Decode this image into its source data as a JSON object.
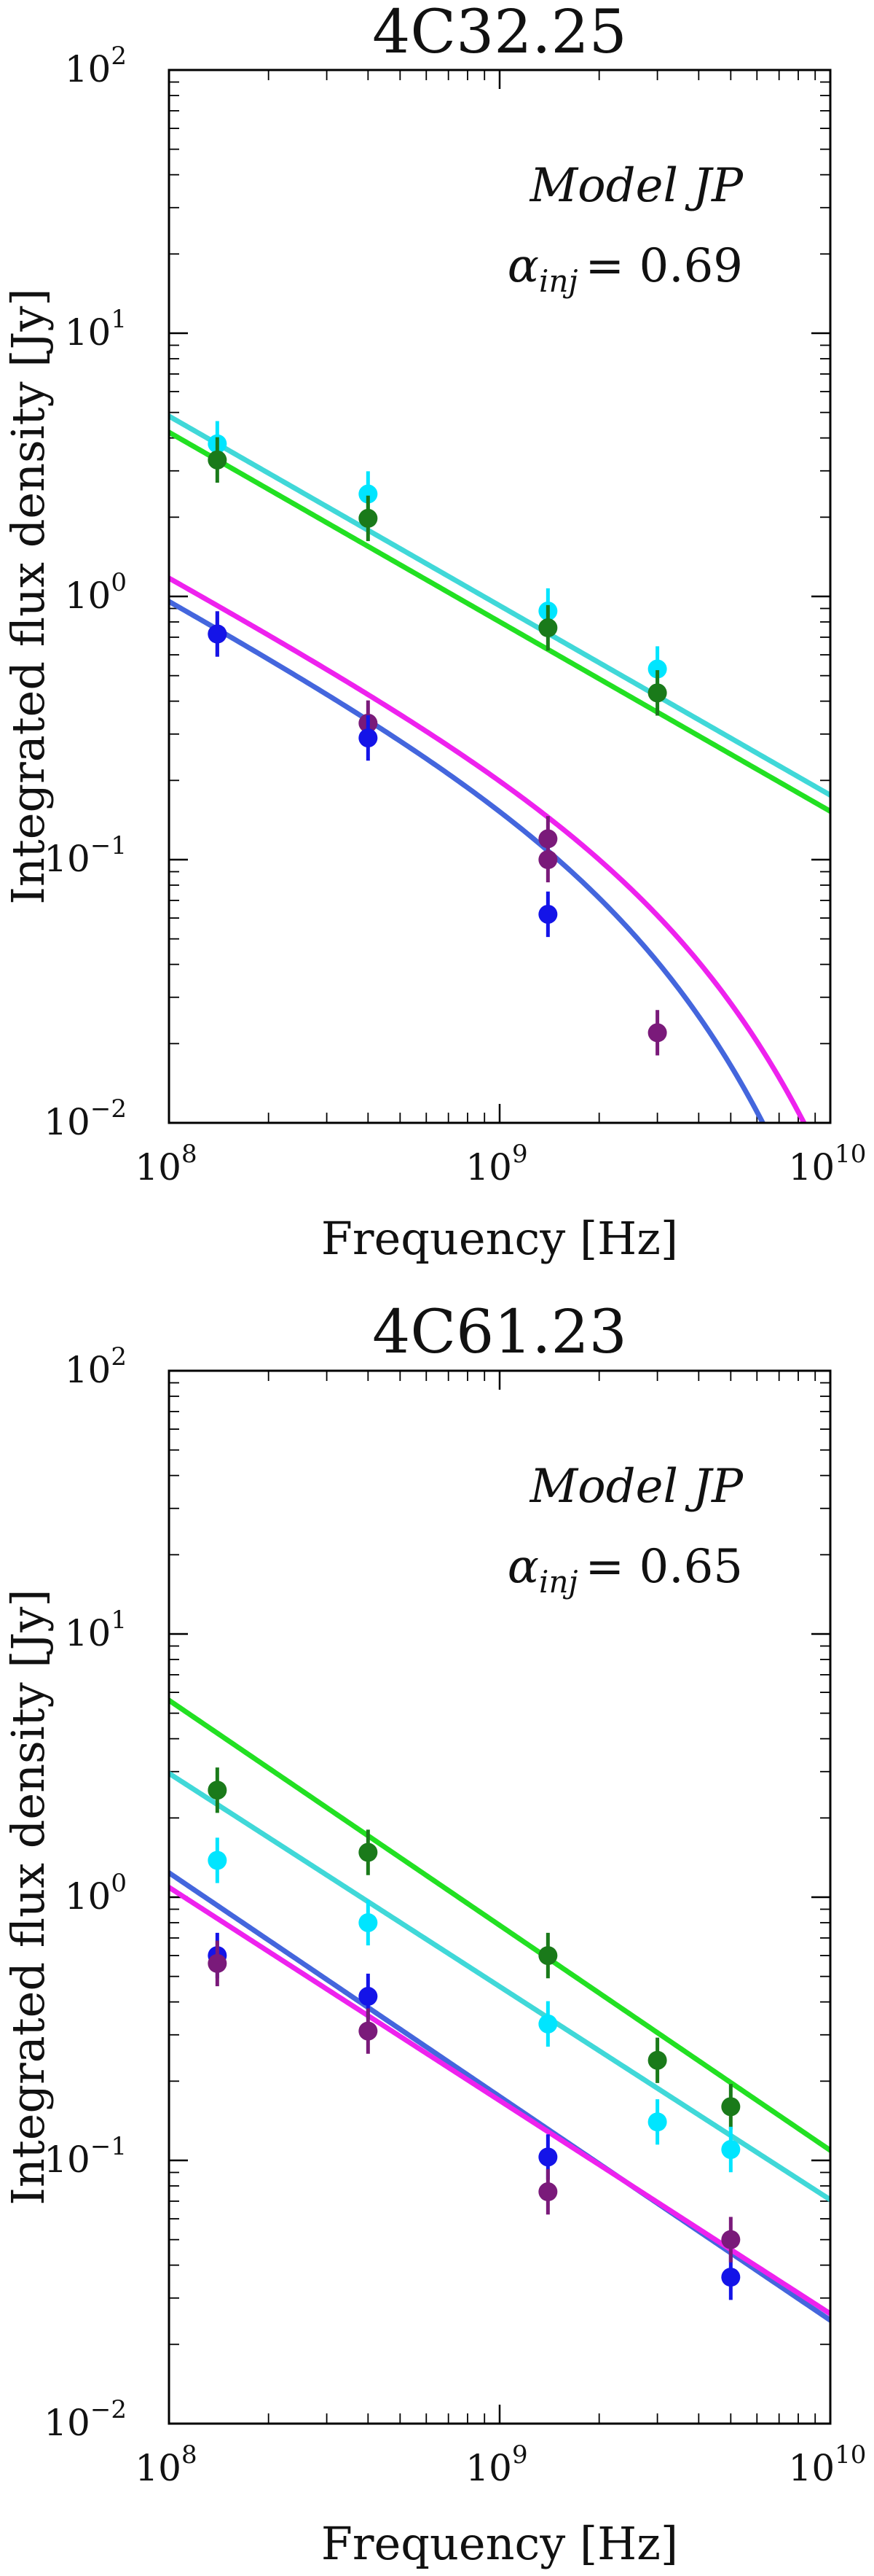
{
  "chart_data": [
    {
      "type": "scatter",
      "title": "4C32.25",
      "xlabel": "Frequency [Hz]",
      "ylabel": "Integrated flux density [Jy]",
      "xscale": "log",
      "yscale": "log",
      "xlim": [
        100000000.0,
        10000000000.0
      ],
      "ylim": [
        0.01,
        100
      ],
      "x_ticks": [
        {
          "base": "10",
          "exp": "8"
        },
        {
          "base": "10",
          "exp": "9"
        },
        {
          "base": "10",
          "exp": "10"
        }
      ],
      "y_ticks": [
        {
          "base": "10",
          "exp": "−2"
        },
        {
          "base": "10",
          "exp": "−1"
        },
        {
          "base": "10",
          "exp": "0"
        },
        {
          "base": "10",
          "exp": "1"
        },
        {
          "base": "10",
          "exp": "2"
        }
      ],
      "annotation": {
        "model": "Model JP",
        "alpha_symbol": "α",
        "alpha_sub": "inj",
        "alpha_value": "= 0.69"
      },
      "series": [
        {
          "name": "cyan",
          "point_color": "#00e5ff",
          "line_color": "#40d8d8",
          "model": "powerlaw",
          "points": [
            [
              140000000.0,
              3.8
            ],
            [
              400000000.0,
              2.45
            ],
            [
              1400000000.0,
              0.88
            ],
            [
              3000000000.0,
              0.53
            ]
          ],
          "line": {
            "anchor": 3.8,
            "slope": -0.72
          }
        },
        {
          "name": "green",
          "point_color": "#1a7a1a",
          "line_color": "#22e022",
          "model": "powerlaw",
          "points": [
            [
              140000000.0,
              3.3
            ],
            [
              400000000.0,
              1.98
            ],
            [
              1400000000.0,
              0.76
            ],
            [
              3000000000.0,
              0.43
            ]
          ],
          "line": {
            "anchor": 3.3,
            "slope": -0.72
          }
        },
        {
          "name": "purple",
          "point_color": "#7a1a7a",
          "line_color": "#ee22ee",
          "model": "jp",
          "points": [
            [
              140000000.0,
              0.72
            ],
            [
              400000000.0,
              0.33
            ],
            [
              1400000000.0,
              0.12
            ],
            [
              1400000000.0,
              0.1
            ],
            [
              3000000000.0,
              0.022
            ]
          ],
          "line": {
            "anchor": 0.95,
            "slope": -0.69,
            "break": 4800000000.0
          }
        },
        {
          "name": "blue",
          "point_color": "#1414e8",
          "line_color": "#4466dd",
          "model": "jp",
          "points": [
            [
              140000000.0,
              0.72
            ],
            [
              400000000.0,
              0.29
            ],
            [
              1400000000.0,
              0.062
            ]
          ],
          "line": {
            "anchor": 0.78,
            "slope": -0.69,
            "break": 3600000000.0
          }
        }
      ]
    },
    {
      "type": "scatter",
      "title": "4C61.23",
      "xlabel": "Frequency [Hz]",
      "ylabel": "Integrated flux density [Jy]",
      "xscale": "log",
      "yscale": "log",
      "xlim": [
        100000000.0,
        10000000000.0
      ],
      "ylim": [
        0.01,
        100
      ],
      "x_ticks": [
        {
          "base": "10",
          "exp": "8"
        },
        {
          "base": "10",
          "exp": "9"
        },
        {
          "base": "10",
          "exp": "10"
        }
      ],
      "y_ticks": [
        {
          "base": "10",
          "exp": "−2"
        },
        {
          "base": "10",
          "exp": "−1"
        },
        {
          "base": "10",
          "exp": "0"
        },
        {
          "base": "10",
          "exp": "1"
        },
        {
          "base": "10",
          "exp": "2"
        }
      ],
      "annotation": {
        "model": "Model JP",
        "alpha_symbol": "α",
        "alpha_sub": "inj",
        "alpha_value": "= 0.65"
      },
      "series": [
        {
          "name": "green",
          "point_color": "#1a7a1a",
          "line_color": "#22e022",
          "model": "powerlaw",
          "points": [
            [
              140000000.0,
              2.55
            ],
            [
              400000000.0,
              1.48
            ],
            [
              1400000000.0,
              0.6
            ],
            [
              3000000000.0,
              0.24
            ],
            [
              5000000000.0,
              0.16
            ]
          ],
          "line": {
            "anchor": 4.2,
            "slope": -0.855
          }
        },
        {
          "name": "cyan",
          "point_color": "#00e5ff",
          "line_color": "#40d8d8",
          "model": "powerlaw",
          "points": [
            [
              140000000.0,
              1.38
            ],
            [
              400000000.0,
              0.8
            ],
            [
              1400000000.0,
              0.33
            ],
            [
              3000000000.0,
              0.14
            ],
            [
              5000000000.0,
              0.11
            ]
          ],
          "line": {
            "anchor": 2.25,
            "slope": -0.81
          }
        },
        {
          "name": "blue",
          "point_color": "#1414e8",
          "line_color": "#4466dd",
          "model": "powerlaw",
          "points": [
            [
              140000000.0,
              0.6
            ],
            [
              400000000.0,
              0.42
            ],
            [
              1400000000.0,
              0.103
            ],
            [
              5000000000.0,
              0.036
            ]
          ],
          "line": {
            "anchor": 0.93,
            "slope": -0.85
          }
        },
        {
          "name": "purple",
          "point_color": "#7a1a7a",
          "line_color": "#ee22ee",
          "model": "powerlaw",
          "points": [
            [
              140000000.0,
              0.56
            ],
            [
              400000000.0,
              0.31
            ],
            [
              1400000000.0,
              0.076
            ],
            [
              5000000000.0,
              0.05
            ]
          ],
          "line": {
            "anchor": 0.83,
            "slope": -0.81
          }
        }
      ]
    }
  ]
}
